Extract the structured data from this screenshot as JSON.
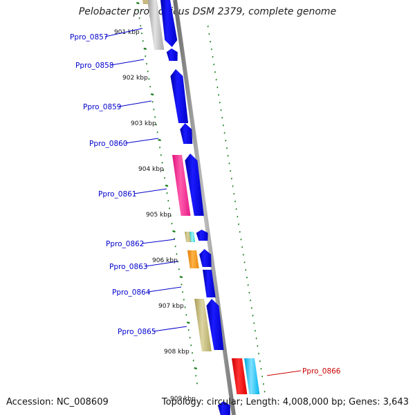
{
  "title": "Pelobacter propionicus DSM 2379, complete genome",
  "footer": {
    "accession": "Accession: NC_008609",
    "summary": "Topology: circular; Length: 4,008,000 bp; Genes: 3,643"
  },
  "colors": {
    "backbone": "#8c8c8c",
    "cds_blue": "#0000ee",
    "label_blue": "#0000cc",
    "label_red": "#cc0000",
    "tick_green": "#1a7f1a"
  },
  "kbp_labels": [
    "901 kbp",
    "902 kbp",
    "903 kbp",
    "904 kbp",
    "905 kbp",
    "906 kbp",
    "907 kbp",
    "908 kbp",
    "909 kbp"
  ],
  "gene_labels": [
    {
      "text": "Ppro_0857",
      "color": "#0000cc"
    },
    {
      "text": "Ppro_0858",
      "color": "#0000cc"
    },
    {
      "text": "Ppro_0859",
      "color": "#0000cc"
    },
    {
      "text": "Ppro_0860",
      "color": "#0000cc"
    },
    {
      "text": "Ppro_0861",
      "color": "#0000cc"
    },
    {
      "text": "Ppro_0862",
      "color": "#0000cc"
    },
    {
      "text": "Ppro_0863",
      "color": "#0000cc"
    },
    {
      "text": "Ppro_0864",
      "color": "#0000cc"
    },
    {
      "text": "Ppro_0865",
      "color": "#0000cc"
    },
    {
      "text": "Ppro_0866",
      "color": "#cc0000"
    }
  ]
}
